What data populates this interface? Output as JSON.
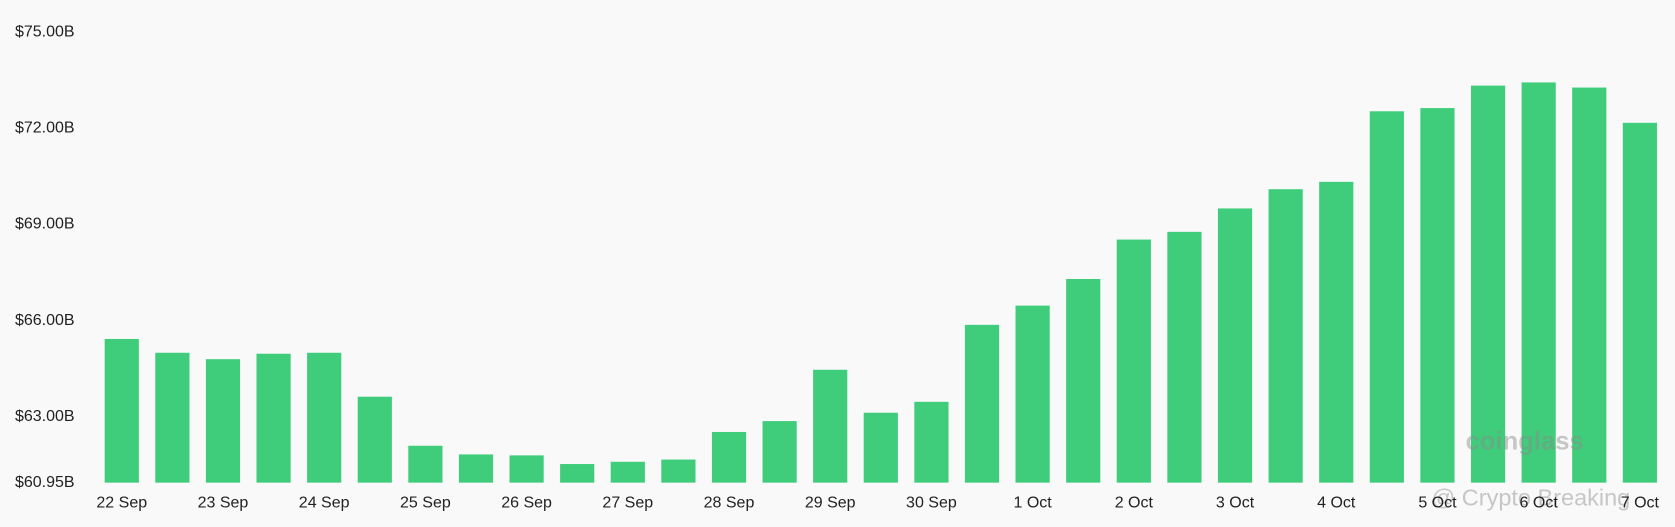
{
  "chart_data": {
    "type": "bar",
    "categories": [
      "22 Sep",
      null,
      "23 Sep",
      null,
      "24 Sep",
      null,
      "25 Sep",
      null,
      "26 Sep",
      null,
      "27 Sep",
      null,
      "28 Sep",
      null,
      "29 Sep",
      null,
      "30 Sep",
      null,
      "1 Oct",
      null,
      "2 Oct",
      null,
      "3 Oct",
      null,
      "4 Oct",
      null,
      "5 Oct",
      null,
      "6 Oct",
      null,
      "7 Oct"
    ],
    "values": [
      65.43,
      65.0,
      64.8,
      64.97,
      65.0,
      63.63,
      62.1,
      61.83,
      61.8,
      61.53,
      61.6,
      61.67,
      62.53,
      62.87,
      64.47,
      63.13,
      63.47,
      65.87,
      66.47,
      67.3,
      68.53,
      68.77,
      69.5,
      70.1,
      70.33,
      72.53,
      72.63,
      73.33,
      73.43,
      73.27,
      72.17
    ],
    "color": "#3fcd7b",
    "ylim": [
      60.95,
      75
    ],
    "yticks": [
      {
        "value": 60.95,
        "label": "$60.95B"
      },
      {
        "value": 63,
        "label": "$63.00B"
      },
      {
        "value": 66,
        "label": "$66.00B"
      },
      {
        "value": 69,
        "label": "$69.00B"
      },
      {
        "value": 72,
        "label": "$72.00B"
      },
      {
        "value": 75,
        "label": "$75.00B"
      }
    ],
    "watermarks": [
      "coinglass",
      "@ Crypto Breaking"
    ]
  }
}
